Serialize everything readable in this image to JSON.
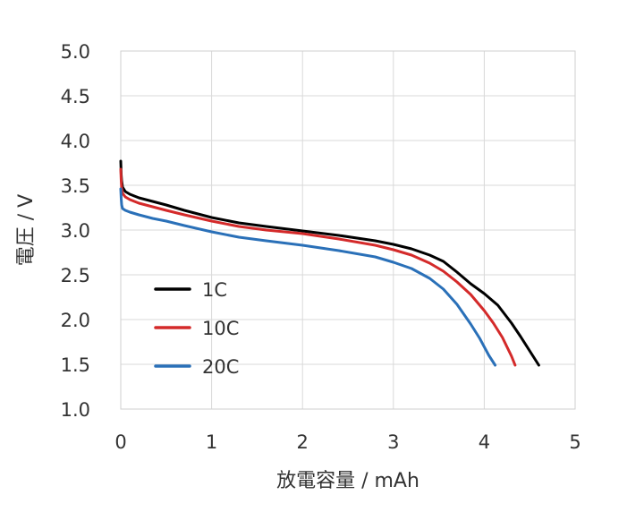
{
  "chart_data": {
    "type": "line",
    "title": "",
    "xlabel": "放電容量 / mAh",
    "ylabel": "電圧 / V",
    "xlim": [
      0,
      5
    ],
    "ylim": [
      1.0,
      5.0
    ],
    "x_ticks": [
      0,
      1,
      2,
      3,
      4,
      5
    ],
    "y_ticks": [
      1.0,
      1.5,
      2.0,
      2.5,
      3.0,
      3.5,
      4.0,
      4.5,
      5.0
    ],
    "x_tick_labels": [
      "0",
      "1",
      "2",
      "3",
      "4",
      "5"
    ],
    "y_tick_labels": [
      "1.0",
      "1.5",
      "2.0",
      "2.5",
      "3.0",
      "3.5",
      "4.0",
      "4.5",
      "5.0"
    ],
    "grid": true,
    "legend_position": "left",
    "series": [
      {
        "name": "1C",
        "color": "#000000",
        "x": [
          0.0,
          0.005,
          0.01,
          0.02,
          0.05,
          0.1,
          0.2,
          0.35,
          0.5,
          0.7,
          1.0,
          1.3,
          1.6,
          2.0,
          2.4,
          2.8,
          3.0,
          3.2,
          3.4,
          3.55,
          3.7,
          3.85,
          4.0,
          4.15,
          4.3,
          4.4,
          4.5,
          4.6
        ],
        "y": [
          3.77,
          3.62,
          3.55,
          3.48,
          3.43,
          3.4,
          3.36,
          3.32,
          3.28,
          3.22,
          3.14,
          3.08,
          3.04,
          2.99,
          2.94,
          2.88,
          2.84,
          2.79,
          2.72,
          2.65,
          2.53,
          2.4,
          2.29,
          2.16,
          1.96,
          1.81,
          1.65,
          1.49
        ]
      },
      {
        "name": "10C",
        "color": "#d42a2a",
        "x": [
          0.0,
          0.005,
          0.01,
          0.02,
          0.05,
          0.1,
          0.2,
          0.35,
          0.5,
          0.7,
          1.0,
          1.3,
          1.6,
          2.0,
          2.4,
          2.8,
          3.0,
          3.2,
          3.4,
          3.55,
          3.7,
          3.85,
          4.0,
          4.1,
          4.2,
          4.3,
          4.34
        ],
        "y": [
          3.68,
          3.55,
          3.47,
          3.41,
          3.37,
          3.34,
          3.3,
          3.26,
          3.22,
          3.17,
          3.1,
          3.04,
          3.0,
          2.96,
          2.9,
          2.83,
          2.78,
          2.72,
          2.63,
          2.54,
          2.42,
          2.28,
          2.1,
          1.96,
          1.8,
          1.59,
          1.49
        ]
      },
      {
        "name": "20C",
        "color": "#2a70b8",
        "x": [
          0.0,
          0.005,
          0.01,
          0.02,
          0.05,
          0.1,
          0.2,
          0.35,
          0.5,
          0.7,
          1.0,
          1.3,
          1.6,
          2.0,
          2.4,
          2.8,
          3.0,
          3.2,
          3.4,
          3.55,
          3.7,
          3.85,
          3.95,
          4.05,
          4.12
        ],
        "y": [
          3.46,
          3.35,
          3.28,
          3.24,
          3.22,
          3.2,
          3.17,
          3.13,
          3.1,
          3.05,
          2.98,
          2.92,
          2.88,
          2.83,
          2.77,
          2.7,
          2.64,
          2.57,
          2.46,
          2.34,
          2.17,
          1.95,
          1.79,
          1.6,
          1.49
        ]
      }
    ]
  }
}
